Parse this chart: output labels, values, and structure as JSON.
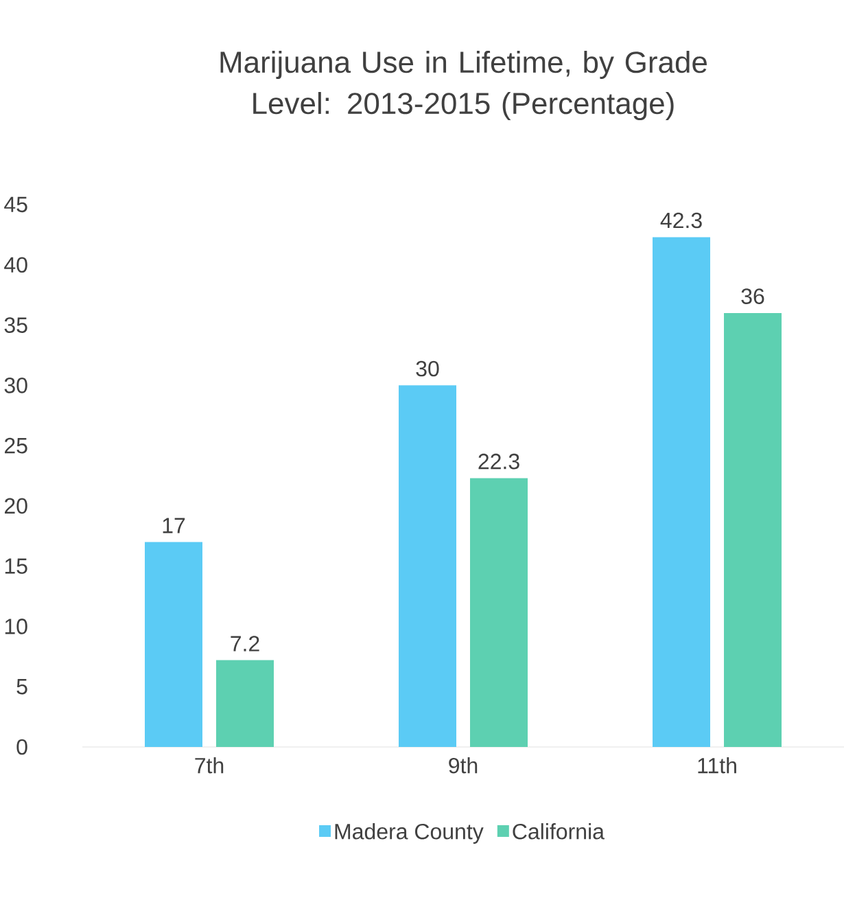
{
  "chart_data": {
    "type": "bar",
    "title": "Marijuana Use in Lifetime, by Grade Level: 2013-2015 (Percentage)",
    "categories": [
      "7th",
      "9th",
      "11th"
    ],
    "series": [
      {
        "name": "Madera County",
        "color": "#5bcbf5",
        "values": [
          17,
          30,
          42.3
        ]
      },
      {
        "name": "California",
        "color": "#5dd0b1",
        "values": [
          7.2,
          22.3,
          36
        ]
      }
    ],
    "ylim": [
      0,
      45
    ],
    "yticks": [
      0,
      5,
      10,
      15,
      20,
      25,
      30,
      35,
      40,
      45
    ],
    "data_labels": true,
    "legend": "bottom"
  }
}
